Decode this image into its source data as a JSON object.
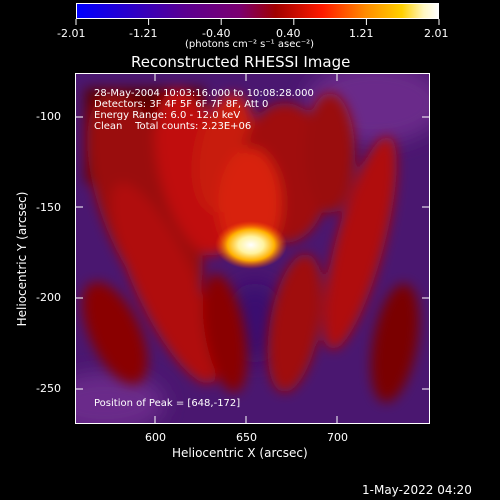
{
  "colorbar": {
    "tick_labels": [
      "-2.01",
      "-1.21",
      "-0.40",
      "0.40",
      "1.21",
      "2.01"
    ],
    "units_text": "(photons cm⁻² s⁻¹ asec⁻²)",
    "gradient_colors": [
      "#0000ff",
      "#2b00c8",
      "#5b0090",
      "#7a0070",
      "#a00000",
      "#ff1a00",
      "#ff8c00",
      "#ffd000",
      "#fff7c0",
      "#ffffff"
    ]
  },
  "plot": {
    "title": "Reconstructed RHESSI Image",
    "xlabel": "Heliocentric X (arcsec)",
    "ylabel": "Heliocentric Y (arcsec)",
    "x_ticks": [
      "600",
      "650",
      "700"
    ],
    "y_ticks": [
      "-100",
      "-150",
      "-200",
      "-250"
    ],
    "info_lines": [
      "28-May-2004 10:03:16.000 to 10:08:28.000",
      "Detectors: 3F 4F 5F 6F 7F 8F, Att 0",
      "Energy Range: 6.0 - 12.0 keV",
      "Clean    Total counts: 2.23E+06"
    ],
    "peak_text": "Position of Peak = [648,-172]"
  },
  "footer": {
    "timestamp": "1-May-2022 04:20"
  }
}
